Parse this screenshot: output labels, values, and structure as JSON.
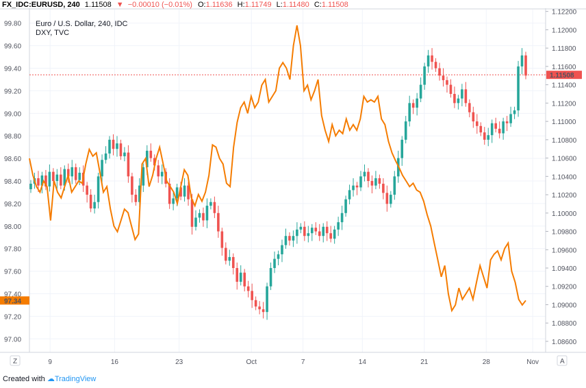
{
  "header": {
    "symbol": "FX_IDC:EURUSD, 240",
    "last": "1.11508",
    "arrow": "▼",
    "change": "−0.00010 (−0.01%)",
    "o_label": "O:",
    "o_value": "1.11636",
    "h_label": "H:",
    "h_value": "1.11749",
    "l_label": "L:",
    "l_value": "1.11480",
    "c_label": "C:",
    "c_value": "1.11508"
  },
  "legend": {
    "main": "Euro / U.S. Dollar, 240, IDC",
    "overlay": "DXY, TVC"
  },
  "badges": {
    "corner_left": "Z",
    "corner_right": "A",
    "eurusd_last": "1.11508",
    "dxy_last": "97.34"
  },
  "footer": {
    "created_with": "Created with",
    "brand": "TradingView"
  },
  "colors": {
    "up": "#26a69a",
    "down": "#ef5350",
    "dxy": "#f57c00",
    "lastline": "#ef5350",
    "grid": "#f0f3fa"
  },
  "chart_data": {
    "type": "line",
    "x_ticks": [
      "9",
      "16",
      "23",
      "Oct",
      "7",
      "14",
      "21",
      "28",
      "Nov"
    ],
    "left_axis": {
      "ticks": [
        "99.80",
        "99.60",
        "99.40",
        "99.20",
        "99.00",
        "98.80",
        "98.60",
        "98.40",
        "98.20",
        "98.00",
        "97.80",
        "97.60",
        "97.40",
        "97.20",
        "97.00"
      ],
      "range": [
        96.88,
        99.92
      ]
    },
    "right_axis": {
      "ticks": [
        "1.12200",
        "1.12000",
        "1.11800",
        "1.11600",
        "1.11400",
        "1.11200",
        "1.11000",
        "1.10800",
        "1.10600",
        "1.10400",
        "1.10200",
        "1.10000",
        "1.09800",
        "1.09600",
        "1.09400",
        "1.09200",
        "1.09000",
        "1.08800",
        "1.08600"
      ],
      "range": [
        1.0848,
        1.1222
      ]
    },
    "series": [
      {
        "name": "Euro / U.S. Dollar, 240, IDC",
        "kind": "candlestick",
        "axis": "right",
        "close": [
          1.1032,
          1.1038,
          1.103,
          1.1041,
          1.1029,
          1.1045,
          1.1035,
          1.1042,
          1.103,
          1.1048,
          1.104,
          1.105,
          1.1036,
          1.1044,
          1.103,
          1.102,
          1.1005,
          1.1012,
          1.104,
          1.1058,
          1.1065,
          1.108,
          1.107,
          1.1076,
          1.1062,
          1.1066,
          1.104,
          1.102,
          1.1012,
          1.103,
          1.105,
          1.1068,
          1.106,
          1.1052,
          1.104,
          1.1045,
          1.1032,
          1.101,
          1.1016,
          1.1028,
          1.1018,
          1.103,
          1.1015,
          1.0985,
          1.0995,
          1.1,
          1.0992,
          1.1008,
          1.1012,
          1.1,
          1.098,
          1.0962,
          1.0948,
          1.0952,
          1.094,
          1.0925,
          1.0935,
          1.092,
          1.0915,
          1.0905,
          1.0898,
          1.0895,
          1.0892,
          1.092,
          1.094,
          1.095,
          1.0955,
          1.0965,
          1.0975,
          1.097,
          1.0975,
          1.0982,
          1.0985,
          1.0975,
          1.0978,
          1.0984,
          1.098,
          1.0975,
          1.0985,
          1.0978,
          1.0972,
          1.0982,
          1.099,
          1.1,
          1.1015,
          1.1025,
          1.103,
          1.1028,
          1.104,
          1.1045,
          1.1035,
          1.103,
          1.1038,
          1.1032,
          1.1022,
          1.101,
          1.102,
          1.104,
          1.106,
          1.108,
          1.11,
          1.112,
          1.1115,
          1.1125,
          1.114,
          1.116,
          1.1172,
          1.1165,
          1.1158,
          1.115,
          1.1145,
          1.114,
          1.113,
          1.112,
          1.1125,
          1.1135,
          1.112,
          1.111,
          1.11,
          1.1095,
          1.1088,
          1.108,
          1.1085,
          1.1098,
          1.1092,
          1.1087,
          1.11,
          1.1098,
          1.1108,
          1.1112,
          1.116,
          1.1172,
          1.115
        ],
        "color_up": "#26a69a",
        "color_down": "#ef5350"
      },
      {
        "name": "DXY, TVC",
        "kind": "line",
        "axis": "left",
        "color": "#f57c00",
        "values": [
          98.6,
          98.45,
          98.35,
          98.3,
          98.4,
          98.35,
          98.05,
          98.4,
          98.3,
          98.25,
          98.35,
          98.45,
          98.3,
          98.35,
          98.4,
          98.38,
          98.55,
          98.68,
          98.62,
          98.65,
          98.48,
          98.3,
          98.35,
          98.15,
          98.0,
          97.95,
          98.05,
          98.15,
          98.12,
          98.0,
          97.88,
          97.93,
          98.55,
          98.6,
          98.35,
          98.45,
          98.6,
          98.7,
          98.55,
          98.4,
          98.35,
          98.3,
          98.2,
          98.35,
          98.5,
          98.45,
          98.25,
          98.18,
          98.28,
          98.22,
          98.3,
          98.45,
          98.72,
          98.7,
          98.6,
          98.55,
          98.38,
          98.35,
          98.7,
          98.92,
          99.05,
          99.1,
          99.0,
          99.15,
          99.05,
          99.1,
          99.25,
          99.3,
          99.1,
          99.15,
          99.2,
          99.4,
          99.45,
          99.4,
          99.3,
          99.6,
          99.78,
          99.6,
          99.2,
          99.25,
          99.12,
          99.2,
          99.3,
          98.98,
          98.85,
          98.75,
          98.9,
          98.8,
          98.85,
          98.82,
          98.95,
          98.85,
          98.9,
          98.85,
          98.95,
          99.15,
          99.1,
          99.12,
          99.1,
          99.15,
          98.95,
          98.9,
          98.75,
          98.65,
          98.58,
          98.52,
          98.45,
          98.4,
          98.35,
          98.38,
          98.32,
          98.3,
          98.22,
          98.1,
          98.0,
          97.85,
          97.7,
          97.55,
          97.65,
          97.4,
          97.25,
          97.3,
          97.45,
          97.35,
          97.4,
          97.45,
          97.35,
          97.5,
          97.65,
          97.55,
          97.45,
          97.7,
          97.75,
          97.78,
          97.7,
          97.8,
          97.85,
          97.6,
          97.5,
          97.35,
          97.3,
          97.34
        ]
      }
    ],
    "last_values": {
      "EURUSD": "1.11508",
      "DXY": "97.34"
    },
    "grid": true,
    "legend_position": "top-left"
  }
}
